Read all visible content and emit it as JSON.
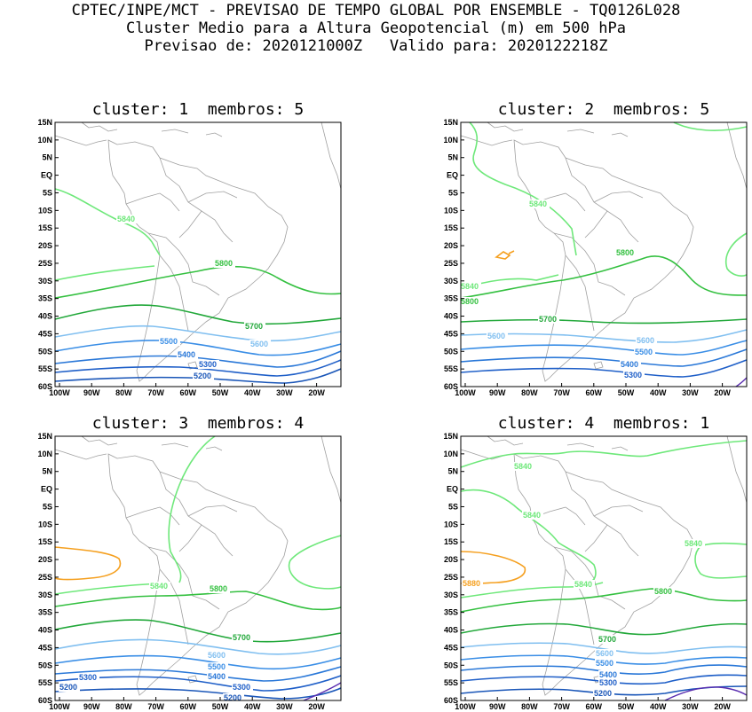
{
  "header": {
    "line1": "CPTEC/INPE/MCT - PREVISAO DE TEMPO GLOBAL POR ENSEMBLE - TQ0126L028",
    "line2": "Cluster Medio para a Altura Geopotencial (m) em 500 hPa",
    "line3": "Previsao de: 2020121000Z   Valido para: 2020122218Z"
  },
  "lat_ticks": [
    "15N",
    "10N",
    "5N",
    "EQ",
    "5S",
    "10S",
    "15S",
    "20S",
    "25S",
    "30S",
    "35S",
    "40S",
    "45S",
    "50S",
    "55S",
    "60S"
  ],
  "lon_ticks": [
    "100W",
    "90W",
    "80W",
    "70W",
    "60W",
    "50W",
    "40W",
    "30W",
    "20W"
  ],
  "colors": {
    "5200": "#1a56b8",
    "5300": "#1f5fc8",
    "5400": "#2a78d8",
    "5500": "#3a8ee6",
    "5600": "#80bff0",
    "5700": "#22a83a",
    "5800": "#34c040",
    "5840": "#6ee87a",
    "5880": "#f5a020",
    "coast": "#a0a0a0",
    "low": "#5a2eb0"
  },
  "panels": [
    {
      "title": "cluster: 1  membros: 5",
      "labels": [
        {
          "text": "5840",
          "c": "5840"
        },
        {
          "text": "5800",
          "c": "5800"
        },
        {
          "text": "5700",
          "c": "5700"
        },
        {
          "text": "5600",
          "c": "5600"
        },
        {
          "text": "5500",
          "c": "5500"
        },
        {
          "text": "5400",
          "c": "5400"
        },
        {
          "text": "5300",
          "c": "5300"
        },
        {
          "text": "5200",
          "c": "5200"
        }
      ]
    },
    {
      "title": "cluster: 2  membros: 5",
      "labels": [
        {
          "text": "5840",
          "c": "5840"
        },
        {
          "text": "5800",
          "c": "5800"
        },
        {
          "text": "5840",
          "c": "5840"
        },
        {
          "text": "5800",
          "c": "5800"
        },
        {
          "text": "5700",
          "c": "5700"
        },
        {
          "text": "5600",
          "c": "5600"
        },
        {
          "text": "5600",
          "c": "5600"
        },
        {
          "text": "5500",
          "c": "5500"
        },
        {
          "text": "5400",
          "c": "5400"
        },
        {
          "text": "5300",
          "c": "5300"
        }
      ]
    },
    {
      "title": "cluster: 3  membros: 4",
      "labels": [
        {
          "text": "5840",
          "c": "5840"
        },
        {
          "text": "5800",
          "c": "5800"
        },
        {
          "text": "5700",
          "c": "5700"
        },
        {
          "text": "5600",
          "c": "5600"
        },
        {
          "text": "5500",
          "c": "5500"
        },
        {
          "text": "5400",
          "c": "5400"
        },
        {
          "text": "5300",
          "c": "5300"
        },
        {
          "text": "5300",
          "c": "5300"
        },
        {
          "text": "5200",
          "c": "5200"
        },
        {
          "text": "5200",
          "c": "5200"
        }
      ]
    },
    {
      "title": "cluster: 4  membros: 1",
      "labels": [
        {
          "text": "5840",
          "c": "5840"
        },
        {
          "text": "5840",
          "c": "5840"
        },
        {
          "text": "5840",
          "c": "5840"
        },
        {
          "text": "5840",
          "c": "5840"
        },
        {
          "text": "5880",
          "c": "5880"
        },
        {
          "text": "5800",
          "c": "5800"
        },
        {
          "text": "5700",
          "c": "5700"
        },
        {
          "text": "5600",
          "c": "5600"
        },
        {
          "text": "5500",
          "c": "5500"
        },
        {
          "text": "5400",
          "c": "5400"
        },
        {
          "text": "5300",
          "c": "5300"
        },
        {
          "text": "5200",
          "c": "5200"
        }
      ]
    }
  ]
}
